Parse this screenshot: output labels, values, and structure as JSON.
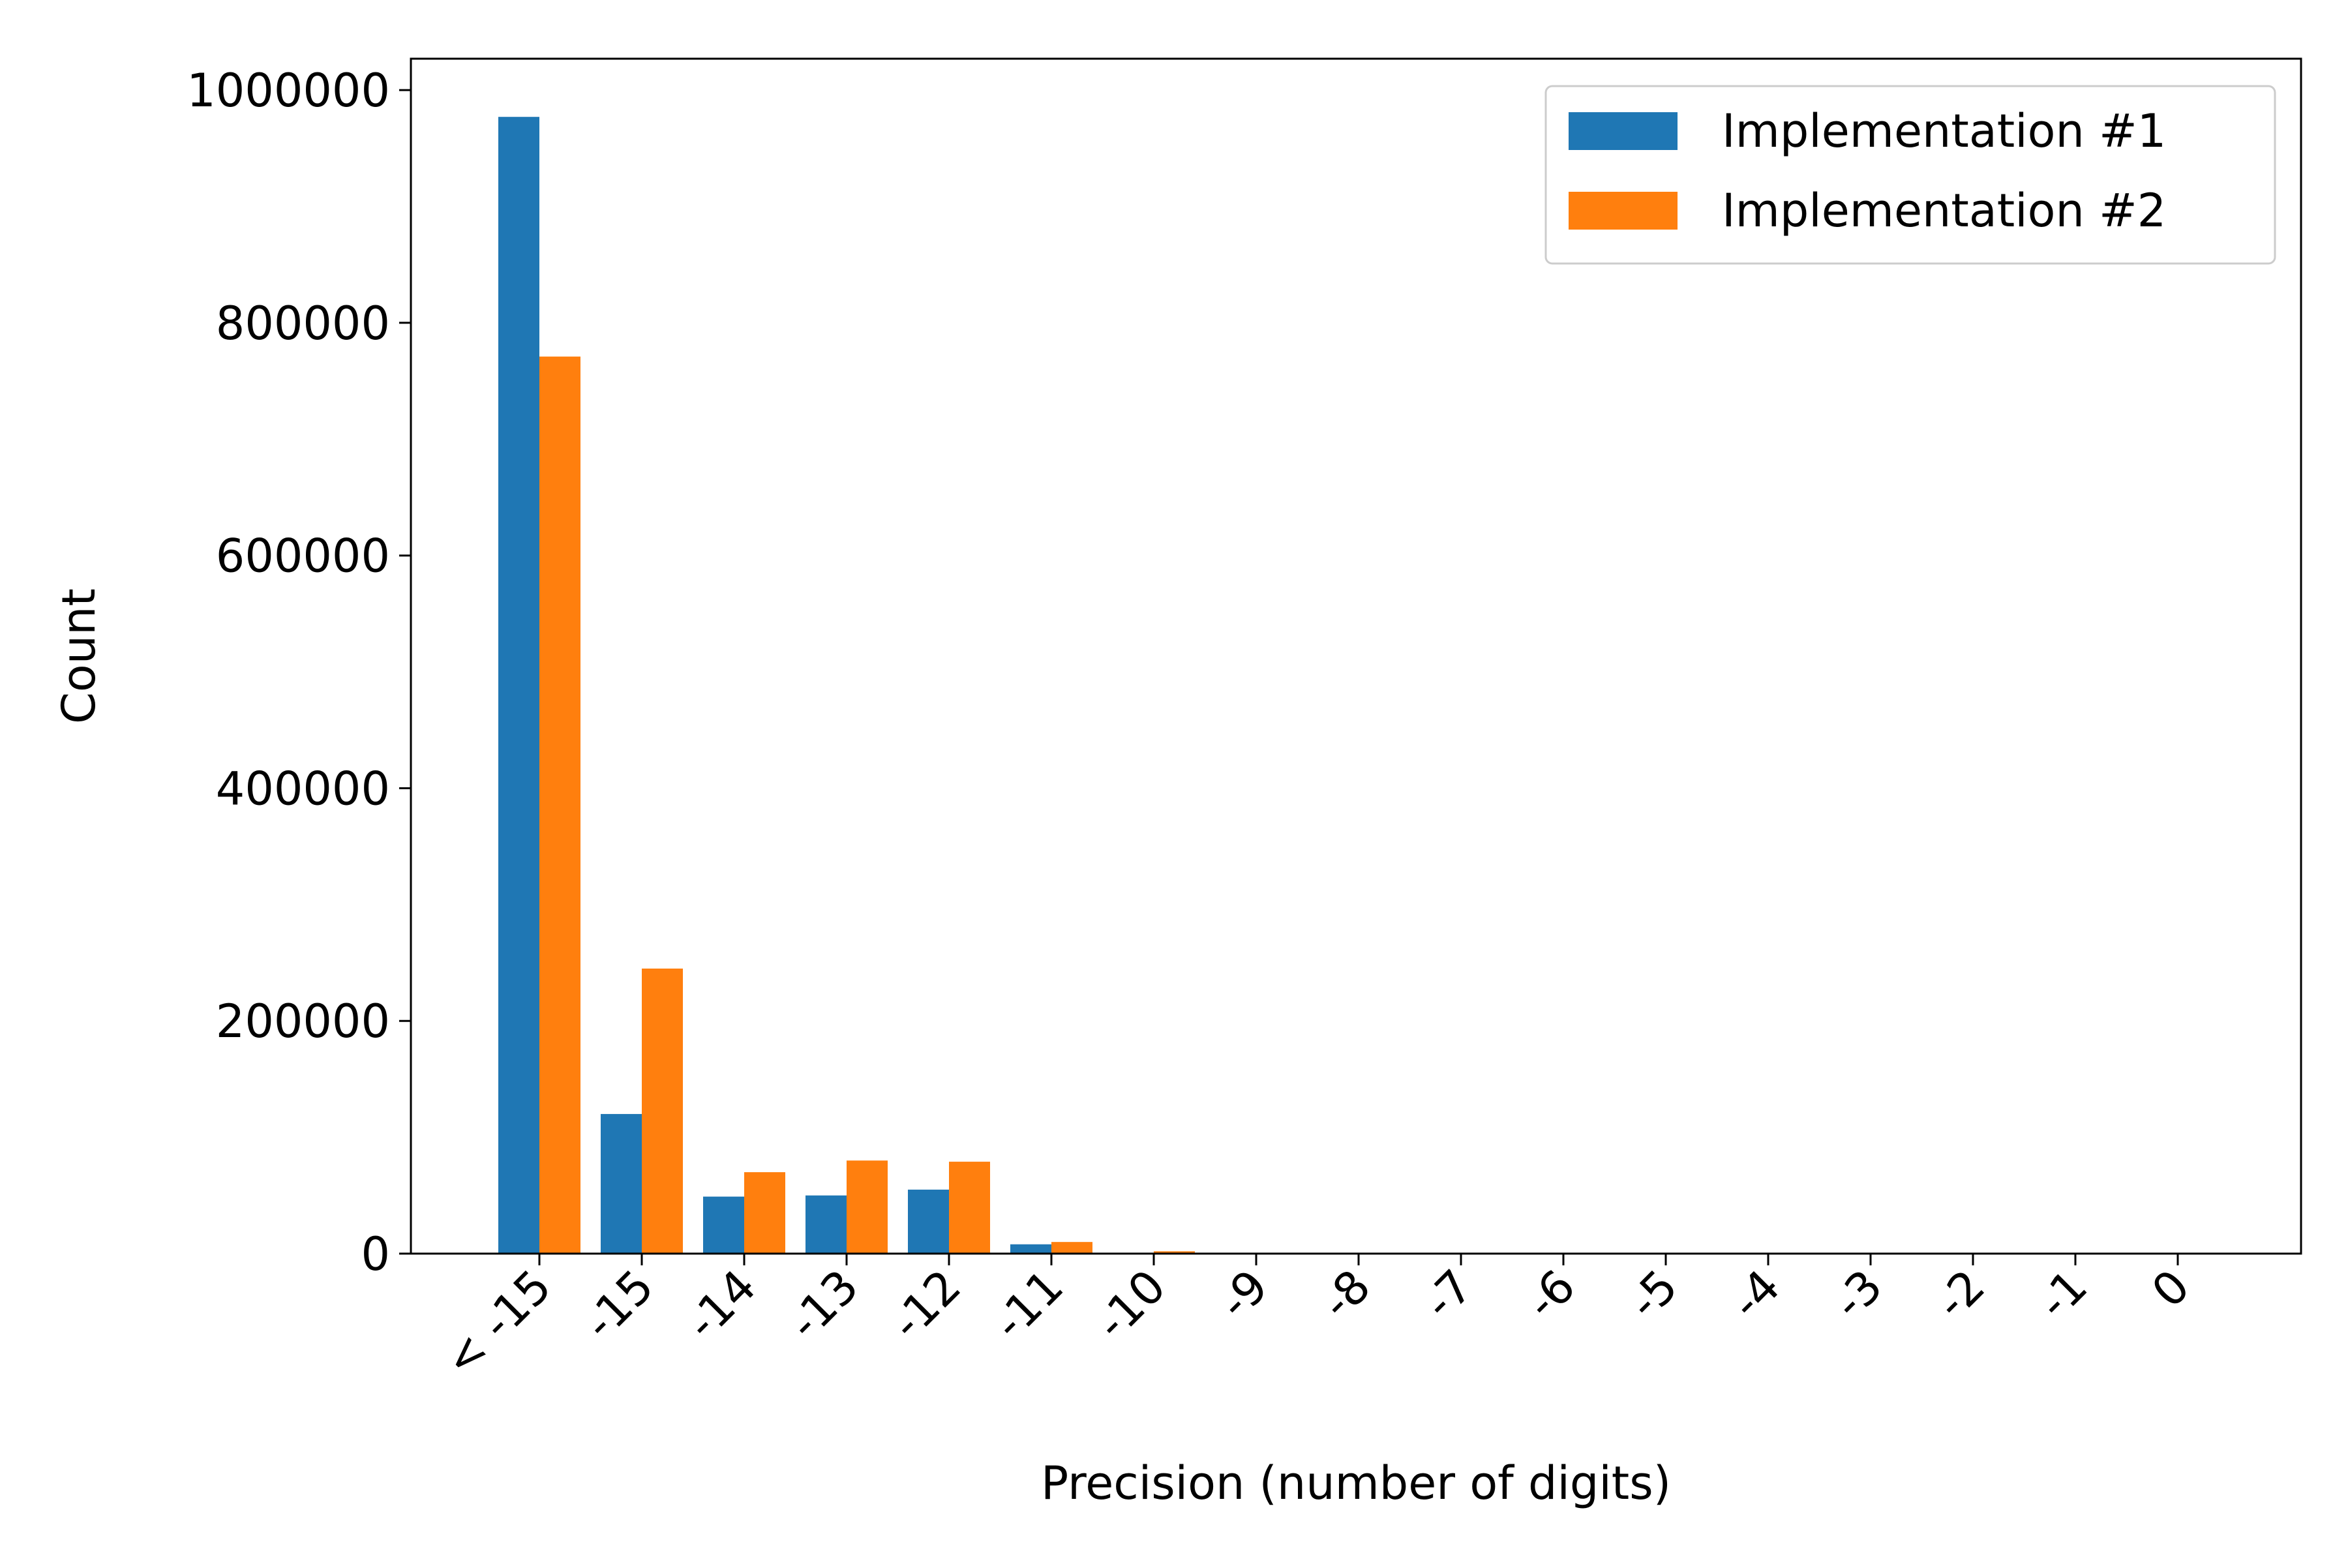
{
  "chart_data": {
    "type": "bar",
    "title": "",
    "xlabel": "Precision (number of digits)",
    "ylabel": "Count",
    "categories": [
      "< -15",
      "-15",
      "-14",
      "-13",
      "-12",
      "-11",
      "-10",
      "-9",
      "-8",
      "-7",
      "-6",
      "-5",
      "-4",
      "-3",
      "-2",
      "-1",
      "0"
    ],
    "series": [
      {
        "name": "Implementation #1",
        "color": "#1f77b4",
        "values": [
          977000,
          120000,
          49000,
          50000,
          55000,
          8000,
          500,
          0,
          0,
          0,
          0,
          0,
          0,
          0,
          0,
          0,
          0
        ]
      },
      {
        "name": "Implementation #2",
        "color": "#ff7f0e",
        "values": [
          771000,
          245000,
          70000,
          80000,
          79000,
          10000,
          2000,
          0,
          0,
          0,
          0,
          0,
          0,
          0,
          0,
          0,
          0
        ]
      }
    ],
    "ylim": [
      0,
      1027000
    ],
    "yticks": [
      0,
      200000,
      400000,
      600000,
      800000,
      1000000
    ],
    "ytick_labels": [
      "0",
      "200000",
      "400000",
      "600000",
      "800000",
      "1000000"
    ],
    "grid": false,
    "legend_position": "top-right"
  }
}
